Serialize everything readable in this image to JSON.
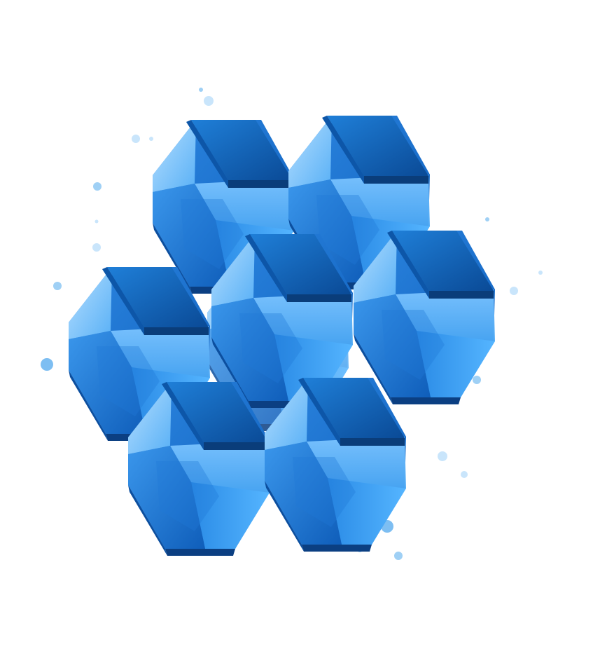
{
  "illustration": {
    "subject": "blue-isometric-cube-cluster",
    "palette": {
      "top_light": "#1f7fd8",
      "top_dark": "#0a4a96",
      "top_edge": "#0a3d7a",
      "side_light": "#9dd2ff",
      "side_mid": "#4aa9f5",
      "side_deep": "#1c6fcf",
      "glass": "#2f8fe8",
      "dot": "#9fd0f5",
      "dot_light": "#c9e5fb"
    }
  }
}
